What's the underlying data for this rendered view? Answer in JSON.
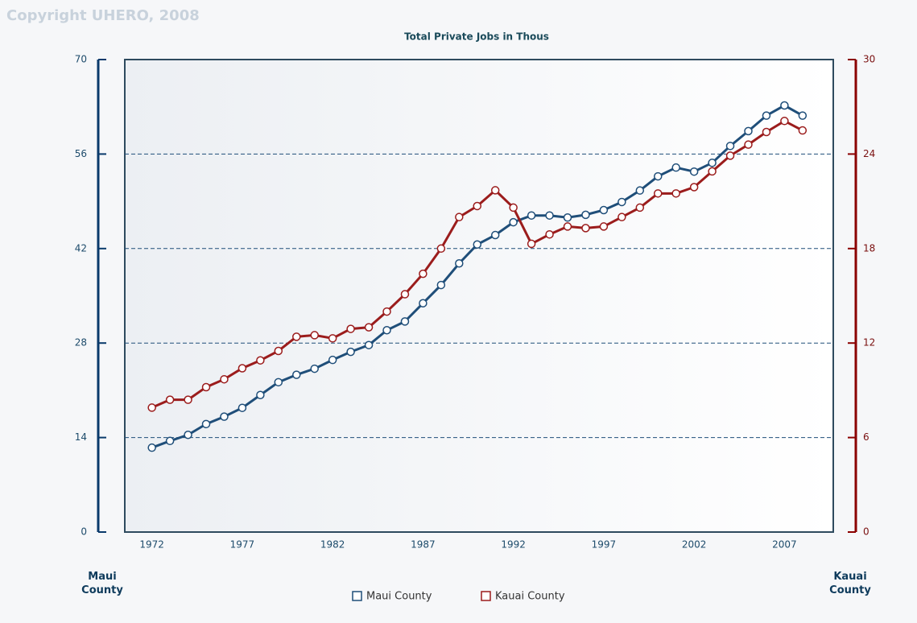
{
  "copyright": "Copyright UHERO, 2008",
  "chart_data": {
    "type": "line",
    "title": "Total Private Jobs in Thous",
    "y_label": "Maui County",
    "y2_label": "Kauai County",
    "x": [
      1972,
      1973,
      1974,
      1975,
      1976,
      1977,
      1978,
      1979,
      1980,
      1981,
      1982,
      1983,
      1984,
      1985,
      1986,
      1987,
      1988,
      1989,
      1990,
      1991,
      1992,
      1993,
      1994,
      1995,
      1996,
      1997,
      1998,
      1999,
      2000,
      2001,
      2002,
      2003,
      2004,
      2005,
      2006,
      2007,
      2008
    ],
    "xlim": [
      1970.5,
      2009.7
    ],
    "xticks": [
      1972,
      1977,
      1982,
      1987,
      1992,
      1997,
      2002,
      2007
    ],
    "ylim": [
      0,
      70
    ],
    "yticks": [
      0,
      14,
      28,
      42,
      56,
      70
    ],
    "y2lim": [
      0,
      30
    ],
    "y2ticks": [
      0,
      6,
      12,
      18,
      24,
      30
    ],
    "grid": true,
    "legend": "bottom",
    "series": [
      {
        "name": "Maui County",
        "color": "#1f4e79",
        "axis": "y",
        "values": [
          12.5,
          13.5,
          14.4,
          16.0,
          17.1,
          18.4,
          20.3,
          22.2,
          23.3,
          24.2,
          25.5,
          26.7,
          27.7,
          29.9,
          31.2,
          33.9,
          36.6,
          39.8,
          42.6,
          44.0,
          45.9,
          46.9,
          46.9,
          46.6,
          47.0,
          47.7,
          48.9,
          50.6,
          52.7,
          54.0,
          53.4,
          54.7,
          57.2,
          59.4,
          61.7,
          63.2,
          61.7
        ]
      },
      {
        "name": "Kauai County",
        "color": "#9b1c1c",
        "axis": "y2",
        "values": [
          7.9,
          8.4,
          8.4,
          9.2,
          9.7,
          10.4,
          10.9,
          11.5,
          12.4,
          12.5,
          12.3,
          12.9,
          13.0,
          14.0,
          15.1,
          16.4,
          18.0,
          20.0,
          20.7,
          21.7,
          20.6,
          18.3,
          18.9,
          19.4,
          19.3,
          19.4,
          20.0,
          20.6,
          21.5,
          21.5,
          21.9,
          22.9,
          23.9,
          24.6,
          25.4,
          26.1,
          25.5
        ]
      }
    ]
  }
}
